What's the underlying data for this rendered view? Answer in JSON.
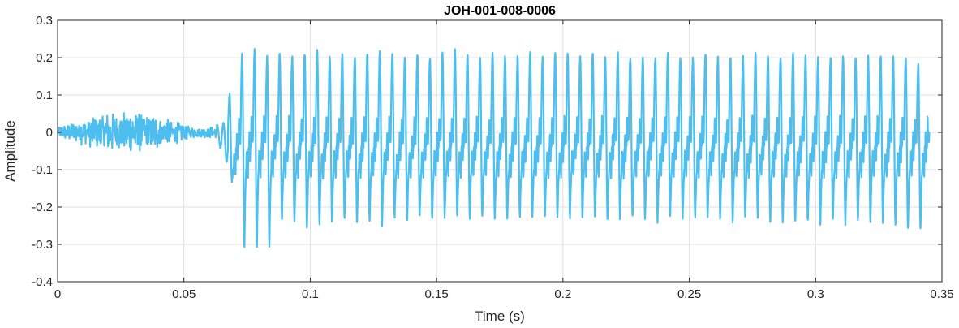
{
  "chart_data": {
    "type": "line",
    "title": "JOH-001-008-0006",
    "xlabel": "Time (s)",
    "ylabel": "Amplitude",
    "xlim": [
      0,
      0.35
    ],
    "ylim": [
      -0.4,
      0.3
    ],
    "xticks": [
      0,
      0.05,
      0.1,
      0.15,
      0.2,
      0.25,
      0.3,
      0.35
    ],
    "xtick_labels": [
      "0",
      "0.05",
      "0.1",
      "0.15",
      "0.2",
      "0.25",
      "0.3",
      "0.35"
    ],
    "yticks": [
      -0.4,
      -0.3,
      -0.2,
      -0.1,
      0,
      0.1,
      0.2,
      0.3
    ],
    "ytick_labels": [
      "-0.4",
      "-0.3",
      "-0.2",
      "-0.1",
      "0",
      "0.1",
      "0.2",
      "0.3"
    ],
    "grid": true,
    "line_color": "#4DBEEE",
    "signal": {
      "duration": 0.345,
      "noise_segment": {
        "start": 0,
        "end": 0.063,
        "peak_amplitude": 0.055,
        "min_amplitude": -0.06
      },
      "voiced_onset": 0.063,
      "approx_fundamental_hz": 195,
      "voiced_peaks": [
        0.1,
        0.21,
        0.22,
        0.2,
        0.21,
        0.2,
        0.21,
        0.22,
        0.2,
        0.21,
        0.2,
        0.21,
        0.22,
        0.21,
        0.2,
        0.21,
        0.2,
        0.21,
        0.22,
        0.21,
        0.2,
        0.21,
        0.2,
        0.2,
        0.21,
        0.2,
        0.21,
        0.21,
        0.2,
        0.21,
        0.2,
        0.21,
        0.2,
        0.2,
        0.2,
        0.21,
        0.2,
        0.2,
        0.21,
        0.2,
        0.2,
        0.2,
        0.21,
        0.2,
        0.2,
        0.21,
        0.2,
        0.2,
        0.2,
        0.2,
        0.2,
        0.2,
        0.2,
        0.2,
        0.2,
        0.18
      ],
      "voiced_troughs": [
        -0.13,
        -0.31,
        -0.315,
        -0.31,
        -0.23,
        -0.24,
        -0.26,
        -0.25,
        -0.24,
        -0.23,
        -0.24,
        -0.24,
        -0.25,
        -0.23,
        -0.24,
        -0.23,
        -0.23,
        -0.23,
        -0.23,
        -0.23,
        -0.23,
        -0.23,
        -0.23,
        -0.23,
        -0.23,
        -0.23,
        -0.23,
        -0.23,
        -0.23,
        -0.23,
        -0.23,
        -0.23,
        -0.23,
        -0.23,
        -0.24,
        -0.23,
        -0.23,
        -0.23,
        -0.23,
        -0.23,
        -0.24,
        -0.23,
        -0.23,
        -0.24,
        -0.24,
        -0.24,
        -0.24,
        -0.25,
        -0.24,
        -0.25,
        -0.24,
        -0.24,
        -0.24,
        -0.25,
        -0.26,
        -0.26
      ]
    }
  }
}
